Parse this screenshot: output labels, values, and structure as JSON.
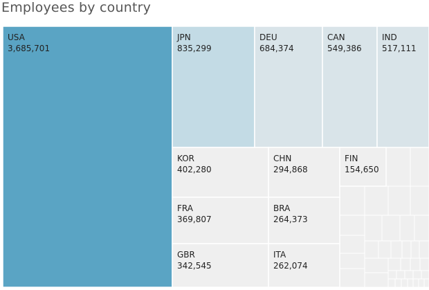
{
  "title": "Employees by country",
  "chart_data": {
    "type": "treemap",
    "title": "Employees by country",
    "measure": "Employees",
    "colors": {
      "high": "#5aa4c4",
      "mid": "#c3dbe5",
      "low": "#d9e4e9",
      "base": "#efefef",
      "border": "#ffffff",
      "text": "#222222"
    },
    "labeled": [
      {
        "name": "USA",
        "value": "3,685,701",
        "numeric": 3685701
      },
      {
        "name": "JPN",
        "value": "835,299",
        "numeric": 835299
      },
      {
        "name": "DEU",
        "value": "684,374",
        "numeric": 684374
      },
      {
        "name": "CAN",
        "value": "549,386",
        "numeric": 549386
      },
      {
        "name": "IND",
        "value": "517,111",
        "numeric": 517111
      },
      {
        "name": "KOR",
        "value": "402,280",
        "numeric": 402280
      },
      {
        "name": "CHN",
        "value": "294,868",
        "numeric": 294868
      },
      {
        "name": "FIN",
        "value": "154,650",
        "numeric": 154650
      },
      {
        "name": "FRA",
        "value": "369,807",
        "numeric": 369807
      },
      {
        "name": "BRA",
        "value": "264,373",
        "numeric": 264373
      },
      {
        "name": "GBR",
        "value": "342,545",
        "numeric": 342545
      },
      {
        "name": "ITA",
        "value": "262,074",
        "numeric": 262074
      }
    ]
  }
}
